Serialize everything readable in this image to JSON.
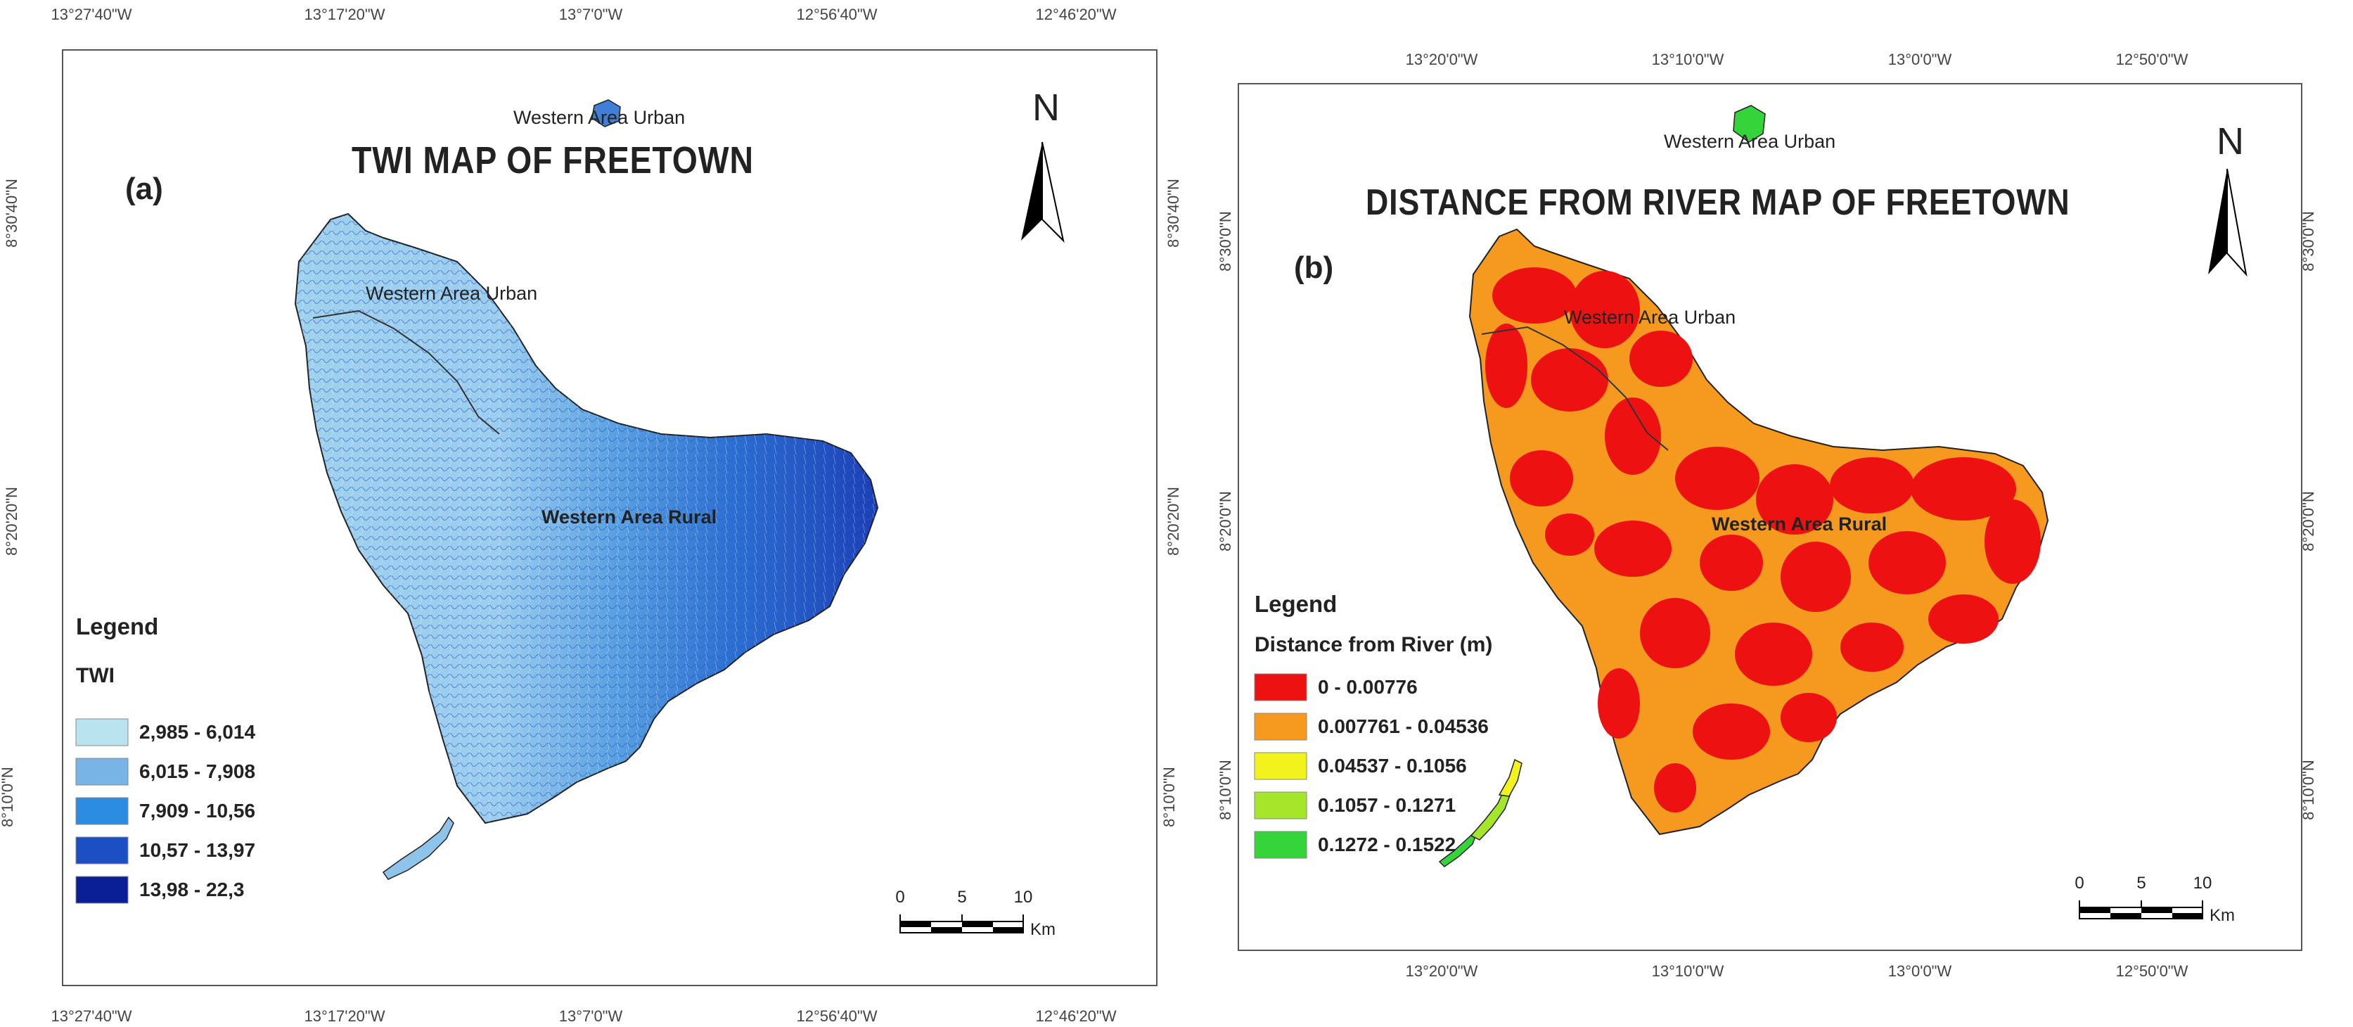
{
  "panel_a": {
    "label": "(a)",
    "title": "TWI MAP OF FREETOWN",
    "places": {
      "urban_top": "Western Area Urban",
      "urban_main": "Western Area Urban",
      "rural": "Western Area Rural"
    },
    "north": "N",
    "legend_heading": "Legend",
    "legend_title": "TWI",
    "legend_items": [
      {
        "label": "2,985 - 6,014",
        "color": "#b9e3ef"
      },
      {
        "label": "6,015 - 7,908",
        "color": "#79b4e6"
      },
      {
        "label": "7,909 - 10,56",
        "color": "#2c8ce0"
      },
      {
        "label": "10,57 - 13,97",
        "color": "#1c4fc4"
      },
      {
        "label": "13,98 - 22,3",
        "color": "#0a1f96"
      }
    ],
    "scale": {
      "labels": [
        "0",
        "5",
        "10"
      ],
      "unit": "Km"
    },
    "ticks_top": [
      "13°27'40\"W",
      "13°17'20\"W",
      "13°7'0\"W",
      "12°56'40\"W",
      "12°46'20\"W"
    ],
    "ticks_bottom": [
      "13°27'40\"W",
      "13°17'20\"W",
      "13°7'0\"W",
      "12°56'40\"W",
      "12°46'20\"W"
    ],
    "ticks_left": [
      "8°30'40\"N",
      "8°20'20\"N",
      "8°10'0\"N"
    ],
    "ticks_right": [
      "8°30'40\"N",
      "8°20'20\"N",
      "8°10'0\"N"
    ]
  },
  "panel_b": {
    "label": "(b)",
    "title": "DISTANCE FROM RIVER MAP OF FREETOWN",
    "places": {
      "urban_top": "Western Area Urban",
      "urban_main": "Western Area Urban",
      "rural": "Western Area Rural"
    },
    "north": "N",
    "legend_heading": "Legend",
    "legend_title": "Distance from River (m)",
    "legend_items": [
      {
        "label": "0 - 0.00776",
        "color": "#ee1111"
      },
      {
        "label": "0.007761 - 0.04536",
        "color": "#f59a1e"
      },
      {
        "label": "0.04537 - 0.1056",
        "color": "#f2f21c"
      },
      {
        "label": "0.1057 - 0.1271",
        "color": "#a6e62a"
      },
      {
        "label": "0.1272 - 0.1522",
        "color": "#34d43a"
      }
    ],
    "scale": {
      "labels": [
        "0",
        "5",
        "10"
      ],
      "unit": "Km"
    },
    "ticks_top": [
      "13°20'0\"W",
      "13°10'0\"W",
      "13°0'0\"W",
      "12°50'0\"W"
    ],
    "ticks_bottom": [
      "13°20'0\"W",
      "13°10'0\"W",
      "13°0'0\"W",
      "12°50'0\"W"
    ],
    "ticks_left": [
      "8°30'0\"N",
      "8°20'0\"N",
      "8°10'0\"N"
    ],
    "ticks_right": [
      "8°30'0\"N",
      "8°20'0\"N",
      "8°10'0\"N"
    ]
  }
}
